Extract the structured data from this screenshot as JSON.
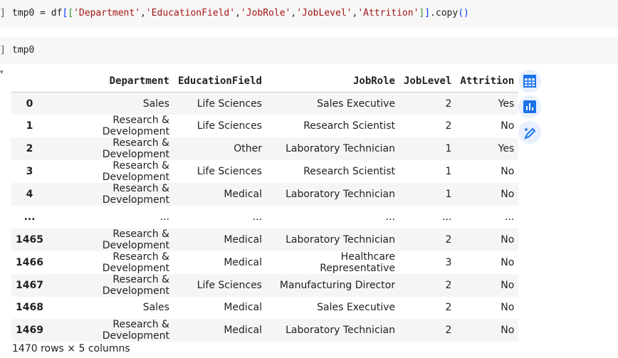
{
  "cells": [
    {
      "bracket": "]",
      "code_parts": [
        [
          "",
          "tmp0 = df"
        ],
        [
          "b1",
          "["
        ],
        [
          "b2",
          "["
        ],
        [
          "s",
          "'Department'"
        ],
        [
          "",
          ","
        ],
        [
          "s",
          "'EducationField'"
        ],
        [
          "",
          ","
        ],
        [
          "s",
          "'JobRole'"
        ],
        [
          "",
          ","
        ],
        [
          "s",
          "'JobLevel'"
        ],
        [
          "",
          ","
        ],
        [
          "s",
          "'Attrition'"
        ],
        [
          "b2",
          "]"
        ],
        [
          "b1",
          "]"
        ],
        [
          "",
          ".copy"
        ],
        [
          "b1",
          "()"
        ]
      ]
    },
    {
      "bracket": "]",
      "code": "tmp0"
    }
  ],
  "table": {
    "columns": [
      "",
      "Department",
      "EducationField",
      "JobRole",
      "JobLevel",
      "Attrition"
    ],
    "rows": [
      [
        "0",
        "Sales",
        "Life Sciences",
        "Sales Executive",
        "2",
        "Yes"
      ],
      [
        "1",
        "Research & Development",
        "Life Sciences",
        "Research Scientist",
        "2",
        "No"
      ],
      [
        "2",
        "Research & Development",
        "Other",
        "Laboratory Technician",
        "1",
        "Yes"
      ],
      [
        "3",
        "Research & Development",
        "Life Sciences",
        "Research Scientist",
        "1",
        "No"
      ],
      [
        "4",
        "Research & Development",
        "Medical",
        "Laboratory Technician",
        "1",
        "No"
      ],
      [
        "...",
        "...",
        "...",
        "...",
        "...",
        "..."
      ],
      [
        "1465",
        "Research & Development",
        "Medical",
        "Laboratory Technician",
        "2",
        "No"
      ],
      [
        "1466",
        "Research & Development",
        "Medical",
        "Healthcare Representative",
        "3",
        "No"
      ],
      [
        "1467",
        "Research & Development",
        "Life Sciences",
        "Manufacturing Director",
        "2",
        "No"
      ],
      [
        "1468",
        "Sales",
        "Medical",
        "Sales Executive",
        "2",
        "No"
      ],
      [
        "1469",
        "Research & Development",
        "Medical",
        "Laboratory Technician",
        "2",
        "No"
      ]
    ],
    "footer": "1470 rows × 5 columns"
  },
  "actions": [
    "table-icon",
    "chart-icon",
    "magic-pencil-icon"
  ],
  "accent": "#1a73e8"
}
